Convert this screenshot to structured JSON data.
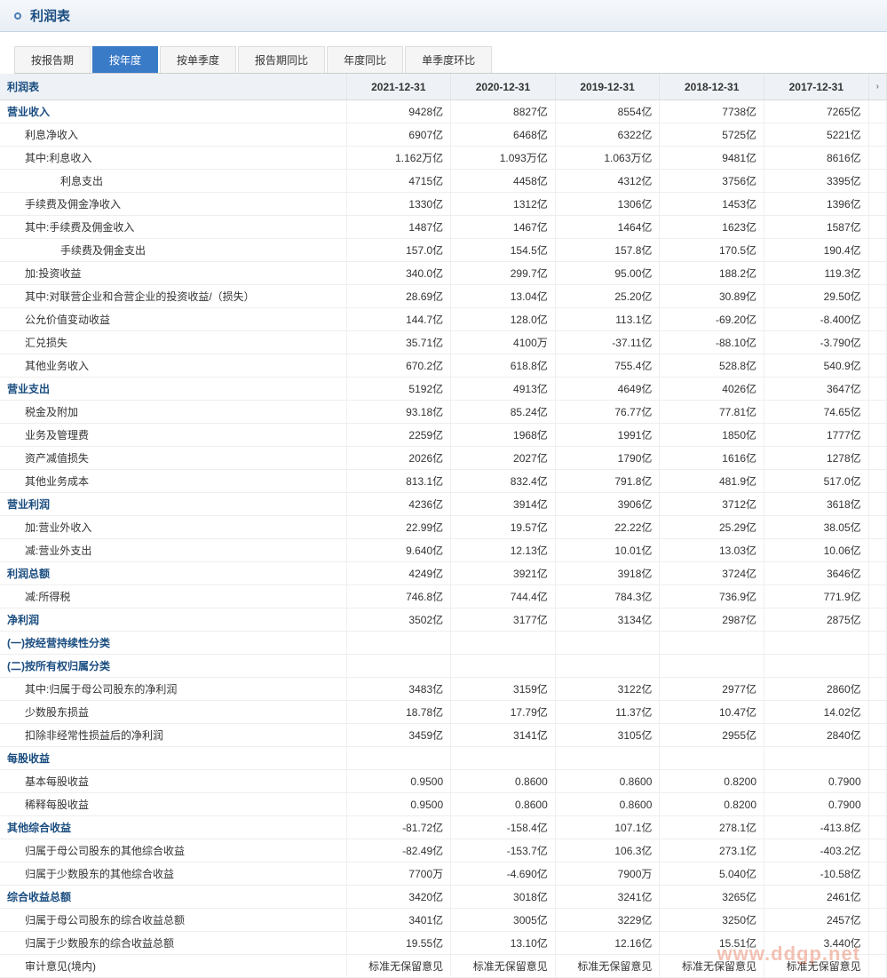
{
  "header": {
    "title": "利润表"
  },
  "tabs": [
    {
      "label": "按报告期",
      "active": false
    },
    {
      "label": "按年度",
      "active": true
    },
    {
      "label": "按单季度",
      "active": false
    },
    {
      "label": "报告期同比",
      "active": false
    },
    {
      "label": "年度同比",
      "active": false
    },
    {
      "label": "单季度环比",
      "active": false
    }
  ],
  "table": {
    "caption": "利润表",
    "columns": [
      "2021-12-31",
      "2020-12-31",
      "2019-12-31",
      "2018-12-31",
      "2017-12-31"
    ],
    "rows": [
      {
        "label": "营业收入",
        "bold": true,
        "indent": 0,
        "values": [
          "9428亿",
          "8827亿",
          "8554亿",
          "7738亿",
          "7265亿"
        ]
      },
      {
        "label": "利息净收入",
        "bold": false,
        "indent": 1,
        "values": [
          "6907亿",
          "6468亿",
          "6322亿",
          "5725亿",
          "5221亿"
        ]
      },
      {
        "label": "其中:利息收入",
        "bold": false,
        "indent": 1,
        "values": [
          "1.162万亿",
          "1.093万亿",
          "1.063万亿",
          "9481亿",
          "8616亿"
        ]
      },
      {
        "label": "利息支出",
        "bold": false,
        "indent": 3,
        "values": [
          "4715亿",
          "4458亿",
          "4312亿",
          "3756亿",
          "3395亿"
        ]
      },
      {
        "label": "手续费及佣金净收入",
        "bold": false,
        "indent": 1,
        "values": [
          "1330亿",
          "1312亿",
          "1306亿",
          "1453亿",
          "1396亿"
        ]
      },
      {
        "label": "其中:手续费及佣金收入",
        "bold": false,
        "indent": 1,
        "values": [
          "1487亿",
          "1467亿",
          "1464亿",
          "1623亿",
          "1587亿"
        ]
      },
      {
        "label": "手续费及佣金支出",
        "bold": false,
        "indent": 3,
        "values": [
          "157.0亿",
          "154.5亿",
          "157.8亿",
          "170.5亿",
          "190.4亿"
        ]
      },
      {
        "label": "加:投资收益",
        "bold": false,
        "indent": 1,
        "values": [
          "340.0亿",
          "299.7亿",
          "95.00亿",
          "188.2亿",
          "119.3亿"
        ]
      },
      {
        "label": "其中:对联营企业和合营企业的投资收益/（损失）",
        "bold": false,
        "indent": 1,
        "values": [
          "28.69亿",
          "13.04亿",
          "25.20亿",
          "30.89亿",
          "29.50亿"
        ]
      },
      {
        "label": "公允价值变动收益",
        "bold": false,
        "indent": 1,
        "values": [
          "144.7亿",
          "128.0亿",
          "113.1亿",
          "-69.20亿",
          "-8.400亿"
        ]
      },
      {
        "label": "汇兑损失",
        "bold": false,
        "indent": 1,
        "values": [
          "35.71亿",
          "4100万",
          "-37.11亿",
          "-88.10亿",
          "-3.790亿"
        ]
      },
      {
        "label": "其他业务收入",
        "bold": false,
        "indent": 1,
        "values": [
          "670.2亿",
          "618.8亿",
          "755.4亿",
          "528.8亿",
          "540.9亿"
        ]
      },
      {
        "label": "营业支出",
        "bold": true,
        "indent": 0,
        "values": [
          "5192亿",
          "4913亿",
          "4649亿",
          "4026亿",
          "3647亿"
        ]
      },
      {
        "label": "税金及附加",
        "bold": false,
        "indent": 1,
        "values": [
          "93.18亿",
          "85.24亿",
          "76.77亿",
          "77.81亿",
          "74.65亿"
        ]
      },
      {
        "label": "业务及管理费",
        "bold": false,
        "indent": 1,
        "values": [
          "2259亿",
          "1968亿",
          "1991亿",
          "1850亿",
          "1777亿"
        ]
      },
      {
        "label": "资产减值损失",
        "bold": false,
        "indent": 1,
        "values": [
          "2026亿",
          "2027亿",
          "1790亿",
          "1616亿",
          "1278亿"
        ]
      },
      {
        "label": "其他业务成本",
        "bold": false,
        "indent": 1,
        "values": [
          "813.1亿",
          "832.4亿",
          "791.8亿",
          "481.9亿",
          "517.0亿"
        ]
      },
      {
        "label": "营业利润",
        "bold": true,
        "indent": 0,
        "values": [
          "4236亿",
          "3914亿",
          "3906亿",
          "3712亿",
          "3618亿"
        ]
      },
      {
        "label": "加:营业外收入",
        "bold": false,
        "indent": 1,
        "values": [
          "22.99亿",
          "19.57亿",
          "22.22亿",
          "25.29亿",
          "38.05亿"
        ]
      },
      {
        "label": "减:营业外支出",
        "bold": false,
        "indent": 1,
        "values": [
          "9.640亿",
          "12.13亿",
          "10.01亿",
          "13.03亿",
          "10.06亿"
        ]
      },
      {
        "label": "利润总额",
        "bold": true,
        "indent": 0,
        "values": [
          "4249亿",
          "3921亿",
          "3918亿",
          "3724亿",
          "3646亿"
        ]
      },
      {
        "label": "减:所得税",
        "bold": false,
        "indent": 1,
        "values": [
          "746.8亿",
          "744.4亿",
          "784.3亿",
          "736.9亿",
          "771.9亿"
        ]
      },
      {
        "label": "净利润",
        "bold": true,
        "indent": 0,
        "values": [
          "3502亿",
          "3177亿",
          "3134亿",
          "2987亿",
          "2875亿"
        ]
      },
      {
        "label": "(一)按经营持续性分类",
        "bold": true,
        "indent": 0,
        "values": [
          "",
          "",
          "",
          "",
          ""
        ]
      },
      {
        "label": "(二)按所有权归属分类",
        "bold": true,
        "indent": 0,
        "values": [
          "",
          "",
          "",
          "",
          ""
        ]
      },
      {
        "label": "其中:归属于母公司股东的净利润",
        "bold": false,
        "indent": 1,
        "values": [
          "3483亿",
          "3159亿",
          "3122亿",
          "2977亿",
          "2860亿"
        ]
      },
      {
        "label": "少数股东损益",
        "bold": false,
        "indent": 1,
        "values": [
          "18.78亿",
          "17.79亿",
          "11.37亿",
          "10.47亿",
          "14.02亿"
        ]
      },
      {
        "label": "扣除非经常性损益后的净利润",
        "bold": false,
        "indent": 1,
        "values": [
          "3459亿",
          "3141亿",
          "3105亿",
          "2955亿",
          "2840亿"
        ]
      },
      {
        "label": "每股收益",
        "bold": true,
        "indent": 0,
        "values": [
          "",
          "",
          "",
          "",
          ""
        ]
      },
      {
        "label": "基本每股收益",
        "bold": false,
        "indent": 1,
        "values": [
          "0.9500",
          "0.8600",
          "0.8600",
          "0.8200",
          "0.7900"
        ]
      },
      {
        "label": "稀释每股收益",
        "bold": false,
        "indent": 1,
        "values": [
          "0.9500",
          "0.8600",
          "0.8600",
          "0.8200",
          "0.7900"
        ]
      },
      {
        "label": "其他综合收益",
        "bold": true,
        "indent": 0,
        "values": [
          "-81.72亿",
          "-158.4亿",
          "107.1亿",
          "278.1亿",
          "-413.8亿"
        ]
      },
      {
        "label": "归属于母公司股东的其他综合收益",
        "bold": false,
        "indent": 1,
        "values": [
          "-82.49亿",
          "-153.7亿",
          "106.3亿",
          "273.1亿",
          "-403.2亿"
        ]
      },
      {
        "label": "归属于少数股东的其他综合收益",
        "bold": false,
        "indent": 1,
        "values": [
          "7700万",
          "-4.690亿",
          "7900万",
          "5.040亿",
          "-10.58亿"
        ]
      },
      {
        "label": "综合收益总额",
        "bold": true,
        "indent": 0,
        "values": [
          "3420亿",
          "3018亿",
          "3241亿",
          "3265亿",
          "2461亿"
        ]
      },
      {
        "label": "归属于母公司股东的综合收益总额",
        "bold": false,
        "indent": 1,
        "values": [
          "3401亿",
          "3005亿",
          "3229亿",
          "3250亿",
          "2457亿"
        ]
      },
      {
        "label": "归属于少数股东的综合收益总额",
        "bold": false,
        "indent": 1,
        "values": [
          "19.55亿",
          "13.10亿",
          "12.16亿",
          "15.51亿",
          "3.440亿"
        ]
      },
      {
        "label": "审计意见(境内)",
        "bold": false,
        "indent": 1,
        "values": [
          "标准无保留意见",
          "标准无保留意见",
          "标准无保留意见",
          "标准无保留意见",
          "标准无保留意见"
        ]
      }
    ]
  },
  "watermark": "www.ddgp.net",
  "colors": {
    "header_gradient_top": "#f5f8fb",
    "header_gradient_bottom": "#e8eef5",
    "header_text": "#1a4d80",
    "tab_active_bg": "#3a7bc8",
    "tab_active_text": "#ffffff",
    "thead_bg": "#eef2f6",
    "row_border": "#eeeeee",
    "bold_row_text": "#1a4d80"
  }
}
